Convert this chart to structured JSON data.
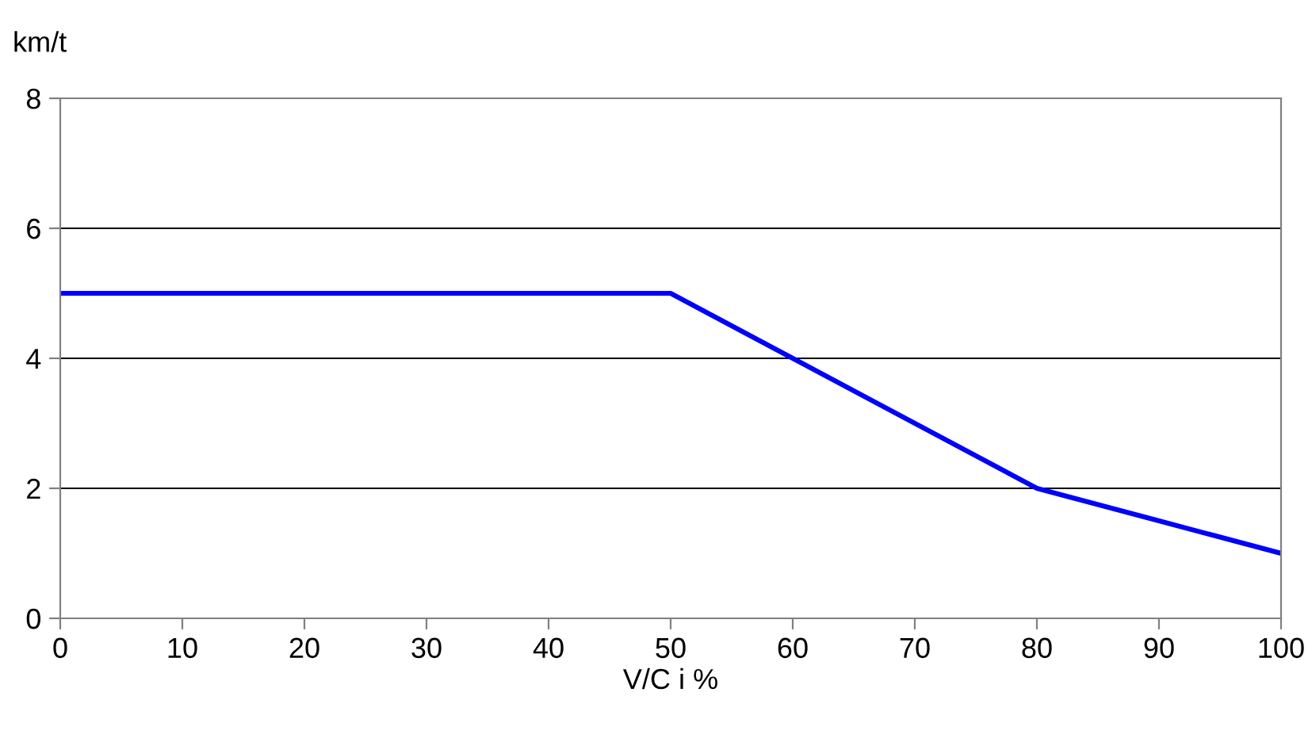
{
  "chart_data": {
    "type": "line",
    "ylabel": "km/t",
    "xlabel": "V/C i %",
    "x": [
      0,
      50,
      60,
      80,
      90,
      100
    ],
    "series": [
      {
        "color": "#0000ff",
        "values": [
          5,
          5,
          4,
          2,
          1.5,
          1
        ]
      }
    ],
    "xlim": [
      0,
      100
    ],
    "xticks": [
      0,
      10,
      20,
      30,
      40,
      50,
      60,
      70,
      80,
      90,
      100
    ],
    "ylim": [
      0,
      8
    ],
    "yticks": [
      0,
      2,
      4,
      6,
      8
    ],
    "grid": "y",
    "legend": false,
    "marker": "none",
    "line_style": "solid"
  }
}
